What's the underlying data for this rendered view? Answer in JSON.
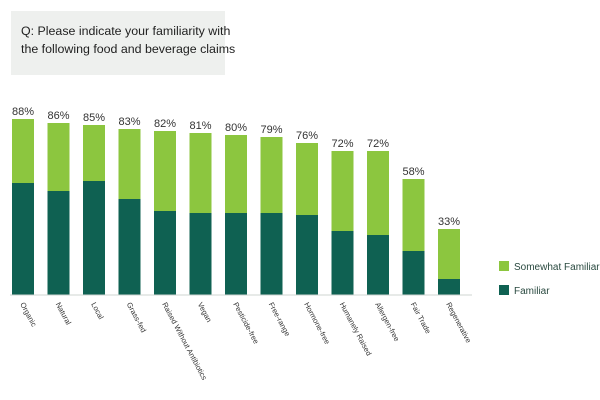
{
  "question": {
    "line1": "Q: Please indicate your familiarity with",
    "line2": "the following food and beverage claims"
  },
  "colors": {
    "familiar": "#0f6152",
    "somewhat_familiar": "#8cc63f"
  },
  "chart_data": {
    "type": "bar",
    "stacked": true,
    "categories": [
      "Organic",
      "Natural",
      "Local",
      "Grass-fed",
      "Raised Without Antibiotics",
      "Vegan",
      "Pesticide-free",
      "Free-range",
      "Hormone-free",
      "Humanely Raised",
      "Allergen-free",
      "Fair Trade",
      "Regenerative"
    ],
    "totals_labels": [
      "88%",
      "86%",
      "85%",
      "83%",
      "82%",
      "81%",
      "80%",
      "79%",
      "76%",
      "72%",
      "72%",
      "58%",
      "33%"
    ],
    "series": [
      {
        "name": "Familiar",
        "values": [
          56,
          52,
          57,
          48,
          42,
          41,
          41,
          41,
          40,
          32,
          30,
          22,
          8
        ]
      },
      {
        "name": "Somewhat Familiar",
        "values": [
          32,
          34,
          28,
          35,
          40,
          40,
          39,
          38,
          36,
          40,
          42,
          36,
          25
        ]
      }
    ],
    "ylim": [
      0,
      88
    ],
    "legend_position": "right",
    "grid": false
  }
}
